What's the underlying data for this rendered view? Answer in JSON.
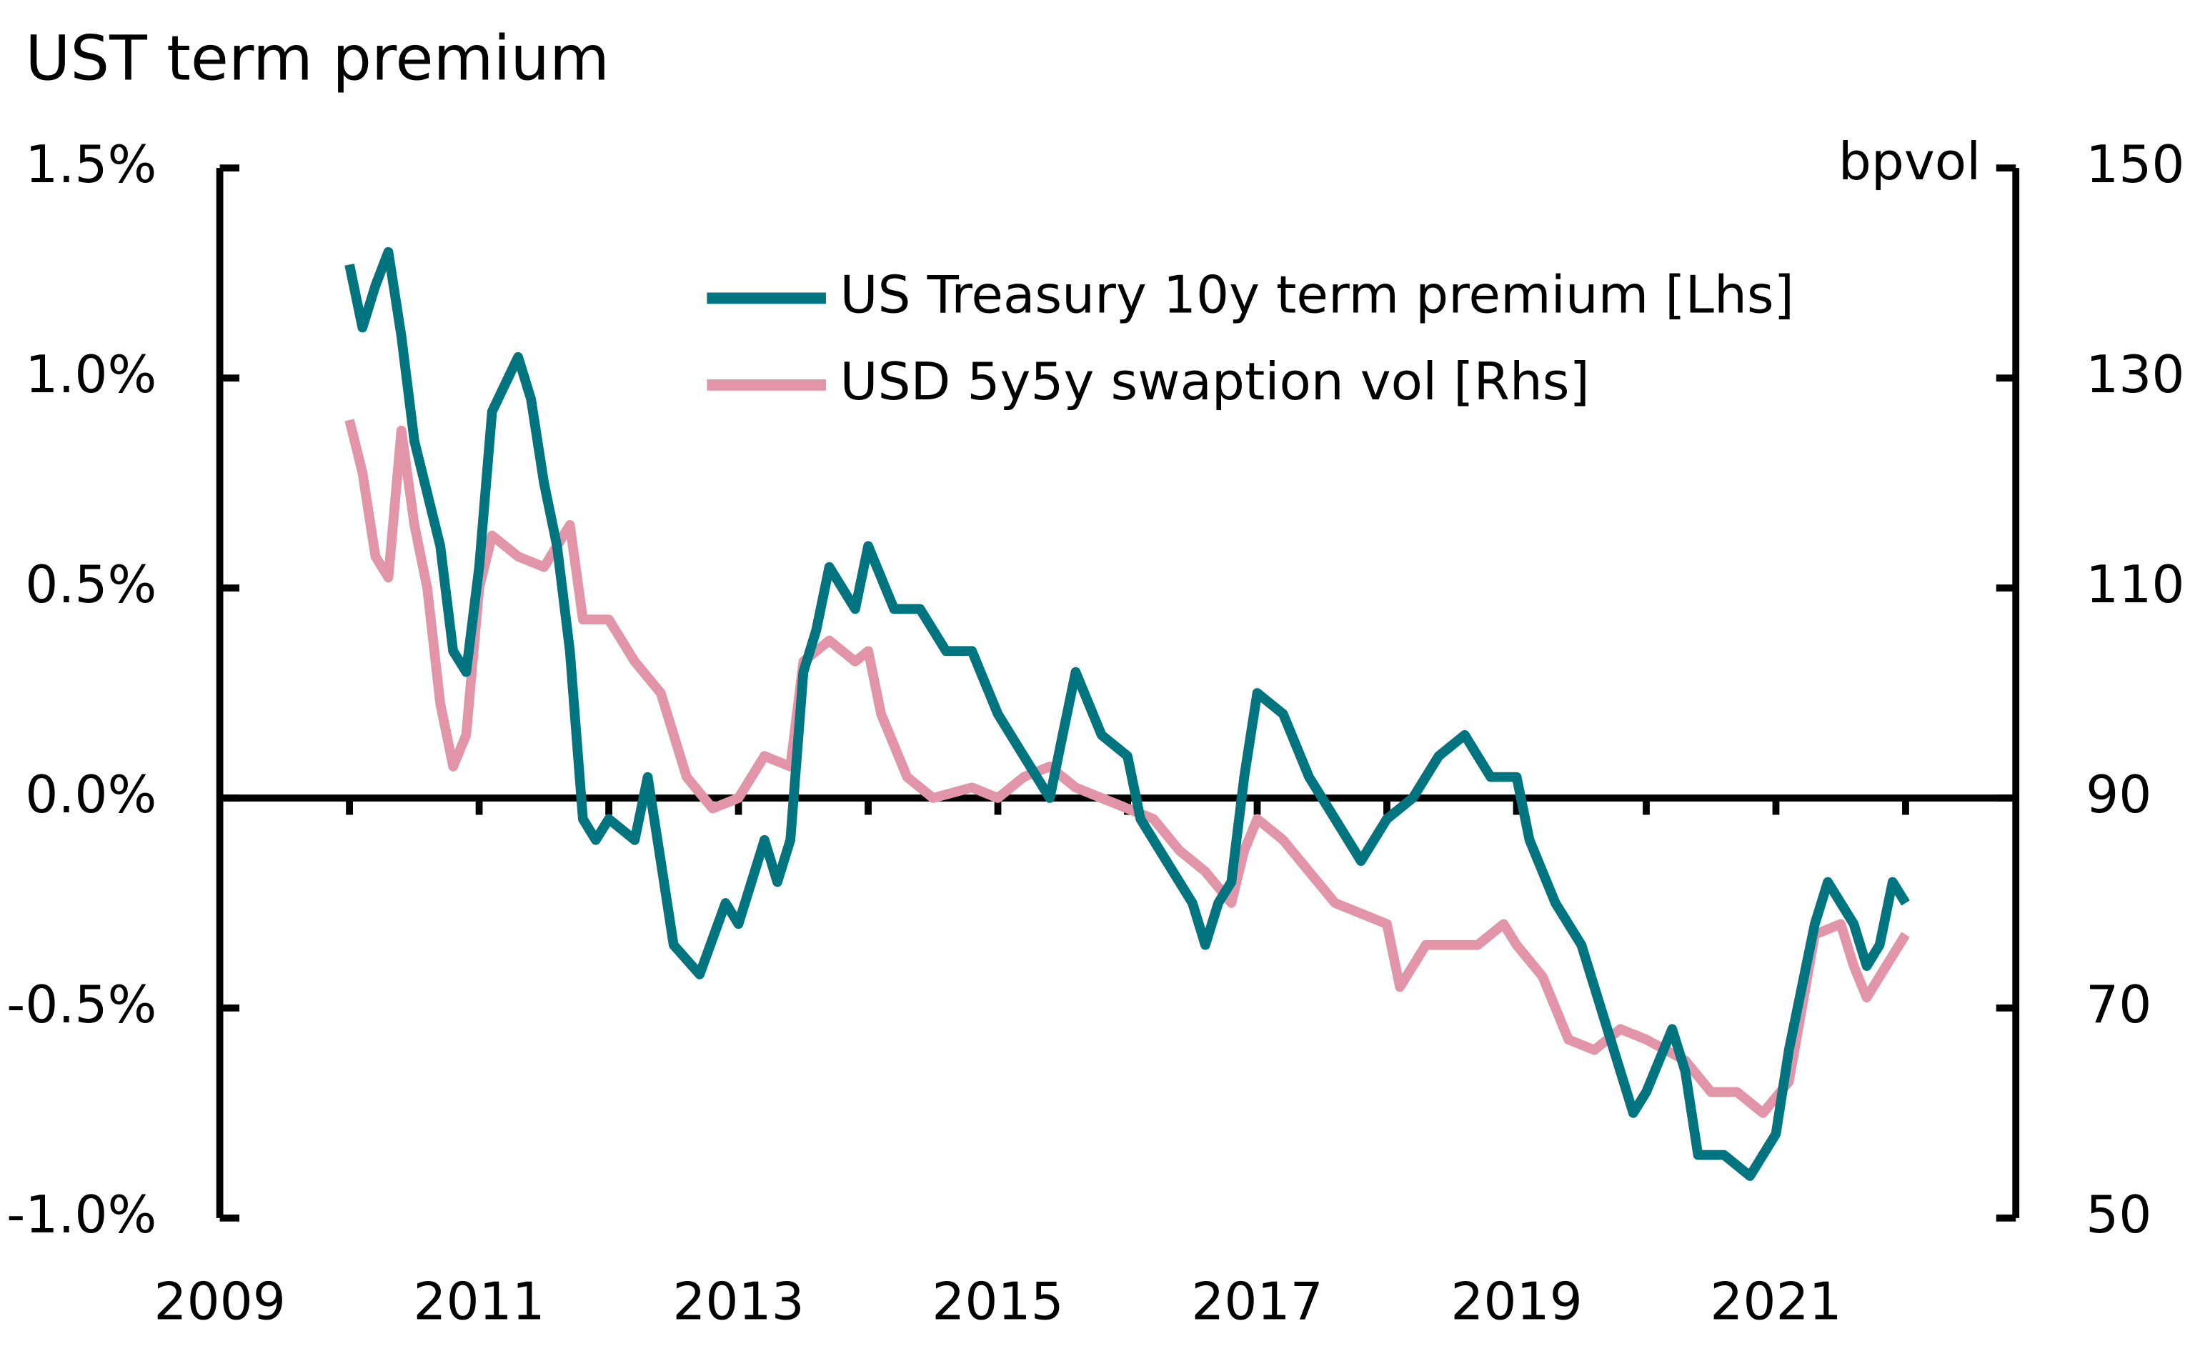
{
  "chart_data": {
    "type": "line",
    "title": "UST term premium",
    "y2_label": "bpvol",
    "xlim": [
      2009,
      2022.85
    ],
    "xticks": [
      2009,
      2011,
      2013,
      2015,
      2017,
      2019,
      2021
    ],
    "xminor_ticks": [
      2010,
      2011,
      2012,
      2013,
      2014,
      2015,
      2016,
      2017,
      2018,
      2019,
      2020,
      2021,
      2022
    ],
    "ylim": [
      -1.0,
      1.5
    ],
    "yticks": [
      {
        "value": -1.0,
        "label": "-1.0%"
      },
      {
        "value": -0.5,
        "label": "-0.5%"
      },
      {
        "value": 0,
        "label": "0.0%"
      },
      {
        "value": 0.5,
        "label": "0.5%"
      },
      {
        "value": 1.0,
        "label": "1.0%"
      },
      {
        "value": 1.5,
        "label": "1.5%"
      }
    ],
    "y2lim": [
      50,
      150
    ],
    "y2ticks": [
      50,
      70,
      90,
      110,
      130,
      150
    ],
    "legend": "top-center",
    "series": [
      {
        "name": "US Treasury 10y term premium [Lhs]",
        "color": "#00747f",
        "x": [
          2010.0,
          2010.1,
          2010.2,
          2010.3,
          2010.4,
          2010.5,
          2010.7,
          2010.8,
          2010.9,
          2011.0,
          2011.1,
          2011.3,
          2011.4,
          2011.5,
          2011.6,
          2011.7,
          2011.8,
          2011.9,
          2012.0,
          2012.2,
          2012.3,
          2012.4,
          2012.5,
          2012.7,
          2012.9,
          2013.0,
          2013.2,
          2013.3,
          2013.4,
          2013.5,
          2013.6,
          2013.7,
          2013.9,
          2014.0,
          2014.2,
          2014.4,
          2014.6,
          2014.8,
          2015.0,
          2015.2,
          2015.4,
          2015.5,
          2015.6,
          2015.8,
          2016.0,
          2016.1,
          2016.3,
          2016.5,
          2016.6,
          2016.7,
          2016.8,
          2016.9,
          2017.0,
          2017.2,
          2017.4,
          2017.6,
          2017.8,
          2018.0,
          2018.2,
          2018.4,
          2018.6,
          2018.8,
          2019.0,
          2019.1,
          2019.3,
          2019.5,
          2019.7,
          2019.9,
          2020.0,
          2020.2,
          2020.3,
          2020.4,
          2020.6,
          2020.8,
          2021.0,
          2021.1,
          2021.3,
          2021.4,
          2021.6,
          2021.7,
          2021.8,
          2021.9,
          2022.0
        ],
        "values": [
          1.27,
          1.12,
          1.22,
          1.3,
          1.1,
          0.85,
          0.6,
          0.35,
          0.3,
          0.55,
          0.92,
          1.05,
          0.95,
          0.75,
          0.6,
          0.35,
          -0.05,
          -0.1,
          -0.05,
          -0.1,
          0.05,
          -0.15,
          -0.35,
          -0.42,
          -0.25,
          -0.3,
          -0.1,
          -0.2,
          -0.1,
          0.3,
          0.4,
          0.55,
          0.45,
          0.6,
          0.45,
          0.45,
          0.35,
          0.35,
          0.2,
          0.1,
          0.0,
          0.15,
          0.3,
          0.15,
          0.1,
          -0.05,
          -0.15,
          -0.25,
          -0.35,
          -0.25,
          -0.2,
          0.05,
          0.25,
          0.2,
          0.05,
          -0.05,
          -0.15,
          -0.05,
          0.0,
          0.1,
          0.15,
          0.05,
          0.05,
          -0.1,
          -0.25,
          -0.35,
          -0.55,
          -0.75,
          -0.7,
          -0.55,
          -0.65,
          -0.85,
          -0.85,
          -0.9,
          -0.8,
          -0.6,
          -0.3,
          -0.2,
          -0.3,
          -0.4,
          -0.35,
          -0.2,
          -0.25
        ]
      },
      {
        "name": "USD 5y5y swaption vol [Rhs]",
        "color": "#e295a8",
        "axis": "y2",
        "x": [
          2010.0,
          2010.1,
          2010.2,
          2010.3,
          2010.4,
          2010.5,
          2010.6,
          2010.7,
          2010.8,
          2010.9,
          2011.0,
          2011.1,
          2011.3,
          2011.5,
          2011.7,
          2011.8,
          2012.0,
          2012.2,
          2012.4,
          2012.6,
          2012.8,
          2013.0,
          2013.2,
          2013.4,
          2013.5,
          2013.7,
          2013.9,
          2014.0,
          2014.1,
          2014.3,
          2014.5,
          2014.8,
          2015.0,
          2015.2,
          2015.4,
          2015.6,
          2015.8,
          2016.0,
          2016.2,
          2016.4,
          2016.6,
          2016.8,
          2016.9,
          2017.0,
          2017.2,
          2017.4,
          2017.6,
          2017.8,
          2018.0,
          2018.1,
          2018.3,
          2018.5,
          2018.7,
          2018.9,
          2019.0,
          2019.2,
          2019.4,
          2019.6,
          2019.8,
          2020.0,
          2020.3,
          2020.5,
          2020.7,
          2020.9,
          2021.1,
          2021.2,
          2021.3,
          2021.5,
          2021.6,
          2021.7,
          2021.8,
          2022.0
        ],
        "values": [
          126,
          121,
          113,
          111,
          125,
          116,
          110,
          99,
          93,
          96,
          110,
          115,
          113,
          112,
          116,
          107,
          107,
          103,
          100,
          92,
          89,
          90,
          94,
          93,
          103,
          105,
          103,
          104,
          98,
          92,
          90,
          91,
          90,
          92,
          93,
          91,
          90,
          89,
          88,
          85,
          83,
          80,
          85,
          88,
          86,
          83,
          80,
          79,
          78,
          72,
          76,
          76,
          76,
          78,
          76,
          73,
          67,
          66,
          68,
          67,
          65,
          62,
          62,
          60,
          63,
          70,
          77,
          78,
          74,
          71,
          73,
          77
        ]
      }
    ]
  }
}
